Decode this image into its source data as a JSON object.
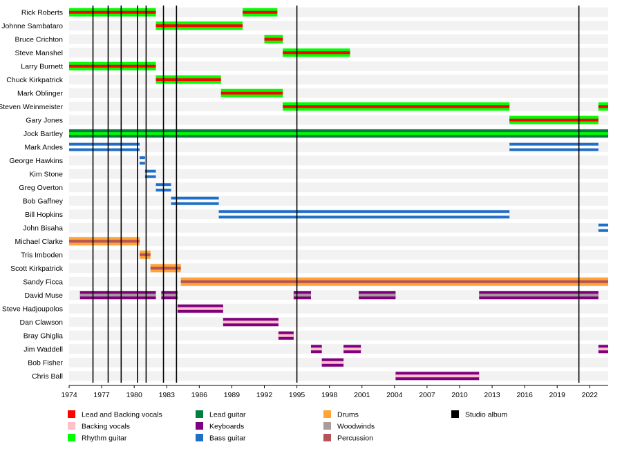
{
  "chart_data": {
    "type": "timeline",
    "x_range": [
      1974.0,
      2023.7
    ],
    "x_ticks": [
      "1974",
      "1977",
      "1980",
      "1983",
      "1986",
      "1989",
      "1992",
      "1995",
      "1998",
      "2001",
      "2004",
      "2007",
      "2010",
      "2013",
      "2016",
      "2019",
      "2022"
    ],
    "roles": {
      "lead_backing_vocals": {
        "label": "Lead and Backing vocals",
        "color": "#ff0000"
      },
      "backing_vocals": {
        "label": "Backing vocals",
        "color": "#ffc0cb"
      },
      "rhythm_guitar": {
        "label": "Rhythm guitar",
        "color": "#00ff00"
      },
      "lead_guitar": {
        "label": "Lead guitar",
        "color": "#007f3f"
      },
      "keyboards": {
        "label": "Keyboards",
        "color": "#7f007f"
      },
      "bass_guitar": {
        "label": "Bass guitar",
        "color": "#1f6fc6"
      },
      "drums": {
        "label": "Drums",
        "color": "#ffa533"
      },
      "woodwinds": {
        "label": "Woodwinds",
        "color": "#a89c9c"
      },
      "percussion": {
        "label": "Percussion",
        "color": "#b5525a"
      },
      "studio_album": {
        "label": "Studio album",
        "color": "#000000"
      }
    },
    "legend_order": [
      [
        "lead_backing_vocals",
        "backing_vocals",
        "rhythm_guitar"
      ],
      [
        "lead_guitar",
        "keyboards",
        "bass_guitar"
      ],
      [
        "drums",
        "woodwinds",
        "percussion"
      ],
      [
        "studio_album"
      ]
    ],
    "studio_albums": [
      1976.2,
      1977.6,
      1978.8,
      1980.3,
      1981.1,
      1982.7,
      1983.9,
      1995.0,
      2021.0
    ],
    "members": [
      {
        "name": "Rick Roberts",
        "bars": [
          {
            "start": 1974.0,
            "end": 1982.0,
            "main": "rhythm_guitar",
            "stripe": "lead_backing_vocals"
          },
          {
            "start": 1990.0,
            "end": 1993.2,
            "main": "rhythm_guitar",
            "stripe": "lead_backing_vocals"
          }
        ]
      },
      {
        "name": "Johnne Sambataro",
        "bars": [
          {
            "start": 1982.0,
            "end": 1990.0,
            "main": "rhythm_guitar",
            "stripe": "lead_backing_vocals"
          }
        ]
      },
      {
        "name": "Bruce Crichton",
        "bars": [
          {
            "start": 1992.0,
            "end": 1993.7,
            "main": "rhythm_guitar",
            "stripe": "lead_backing_vocals"
          }
        ]
      },
      {
        "name": "Steve Manshel",
        "bars": [
          {
            "start": 1993.7,
            "end": 1999.9,
            "main": "rhythm_guitar",
            "stripe": "lead_backing_vocals"
          }
        ]
      },
      {
        "name": "Larry Burnett",
        "bars": [
          {
            "start": 1974.0,
            "end": 1982.0,
            "main": "rhythm_guitar",
            "stripe": "lead_backing_vocals"
          }
        ]
      },
      {
        "name": "Chuck Kirkpatrick",
        "bars": [
          {
            "start": 1982.0,
            "end": 1988.0,
            "main": "rhythm_guitar",
            "stripe": "lead_backing_vocals"
          }
        ]
      },
      {
        "name": "Mark Oblinger",
        "bars": [
          {
            "start": 1988.0,
            "end": 1993.7,
            "main": "rhythm_guitar",
            "stripe": "lead_backing_vocals"
          }
        ]
      },
      {
        "name": "Steven Weinmeister",
        "bars": [
          {
            "start": 1993.7,
            "end": 2014.6,
            "main": "rhythm_guitar",
            "stripe": "lead_backing_vocals"
          },
          {
            "start": 2022.8,
            "end": 2023.7,
            "main": "rhythm_guitar",
            "stripe": "lead_backing_vocals"
          }
        ]
      },
      {
        "name": "Gary Jones",
        "bars": [
          {
            "start": 2014.6,
            "end": 2022.8,
            "main": "rhythm_guitar",
            "stripe": "lead_backing_vocals"
          }
        ]
      },
      {
        "name": "Jock Bartley",
        "bars": [
          {
            "start": 1974.0,
            "end": 2023.7,
            "main": "lead_guitar",
            "stripe": "rhythm_guitar"
          }
        ]
      },
      {
        "name": "Mark Andes",
        "bars": [
          {
            "start": 1974.0,
            "end": 1980.5,
            "main": "bass_guitar",
            "stripe": "white"
          },
          {
            "start": 2014.6,
            "end": 2022.8,
            "main": "bass_guitar",
            "stripe": "white"
          }
        ]
      },
      {
        "name": "George Hawkins",
        "bars": [
          {
            "start": 1980.5,
            "end": 1981.0,
            "main": "bass_guitar",
            "stripe": "white"
          }
        ]
      },
      {
        "name": "Kim Stone",
        "bars": [
          {
            "start": 1981.0,
            "end": 1982.0,
            "main": "bass_guitar",
            "stripe": "white"
          }
        ]
      },
      {
        "name": "Greg Overton",
        "bars": [
          {
            "start": 1982.0,
            "end": 1983.4,
            "main": "bass_guitar",
            "stripe": "white"
          }
        ]
      },
      {
        "name": "Bob Gaffney",
        "bars": [
          {
            "start": 1983.4,
            "end": 1987.8,
            "main": "bass_guitar",
            "stripe": "white"
          }
        ]
      },
      {
        "name": "Bill Hopkins",
        "bars": [
          {
            "start": 1987.8,
            "end": 2014.6,
            "main": "bass_guitar",
            "stripe": "white"
          }
        ]
      },
      {
        "name": "John Bisaha",
        "bars": [
          {
            "start": 2022.8,
            "end": 2023.7,
            "main": "bass_guitar",
            "stripe": "white"
          }
        ]
      },
      {
        "name": "Michael Clarke",
        "bars": [
          {
            "start": 1974.0,
            "end": 1980.5,
            "main": "drums",
            "stripe": "percussion"
          }
        ]
      },
      {
        "name": "Tris Imboden",
        "bars": [
          {
            "start": 1980.5,
            "end": 1981.5,
            "main": "drums",
            "stripe": "percussion"
          }
        ]
      },
      {
        "name": "Scott Kirkpatrick",
        "bars": [
          {
            "start": 1981.5,
            "end": 1984.3,
            "main": "drums",
            "stripe": "percussion"
          }
        ]
      },
      {
        "name": "Sandy Ficca",
        "bars": [
          {
            "start": 1984.3,
            "end": 2023.7,
            "main": "drums",
            "stripe": "percussion"
          }
        ]
      },
      {
        "name": "David Muse",
        "bars": [
          {
            "start": 1975.0,
            "end": 1982.0,
            "main": "keyboards",
            "stripe": "woodwinds"
          },
          {
            "start": 1982.5,
            "end": 1984.0,
            "main": "keyboards",
            "stripe": "woodwinds"
          },
          {
            "start": 1994.7,
            "end": 1996.3,
            "main": "keyboards",
            "stripe": "woodwinds"
          },
          {
            "start": 2000.7,
            "end": 2004.1,
            "main": "keyboards",
            "stripe": "woodwinds"
          },
          {
            "start": 2011.8,
            "end": 2022.8,
            "main": "keyboards",
            "stripe": "woodwinds"
          }
        ]
      },
      {
        "name": "Steve Hadjoupolos",
        "bars": [
          {
            "start": 1984.0,
            "end": 1988.2,
            "main": "keyboards",
            "stripe": "backing_vocals"
          }
        ]
      },
      {
        "name": "Dan Clawson",
        "bars": [
          {
            "start": 1988.2,
            "end": 1993.3,
            "main": "keyboards",
            "stripe": "backing_vocals"
          }
        ]
      },
      {
        "name": "Bray Ghiglia",
        "bars": [
          {
            "start": 1993.3,
            "end": 1994.7,
            "main": "keyboards",
            "stripe": "backing_vocals"
          }
        ]
      },
      {
        "name": "Jim Waddell",
        "bars": [
          {
            "start": 1996.3,
            "end": 1997.3,
            "main": "keyboards",
            "stripe": "backing_vocals"
          },
          {
            "start": 1999.3,
            "end": 2000.9,
            "main": "keyboards",
            "stripe": "backing_vocals"
          },
          {
            "start": 2022.8,
            "end": 2023.7,
            "main": "keyboards",
            "stripe": "backing_vocals"
          }
        ]
      },
      {
        "name": "Bob Fisher",
        "bars": [
          {
            "start": 1997.3,
            "end": 1999.3,
            "main": "keyboards",
            "stripe": "backing_vocals"
          }
        ]
      },
      {
        "name": "Chris Ball",
        "bars": [
          {
            "start": 2004.1,
            "end": 2011.8,
            "main": "keyboards",
            "stripe": "backing_vocals"
          }
        ]
      }
    ]
  }
}
